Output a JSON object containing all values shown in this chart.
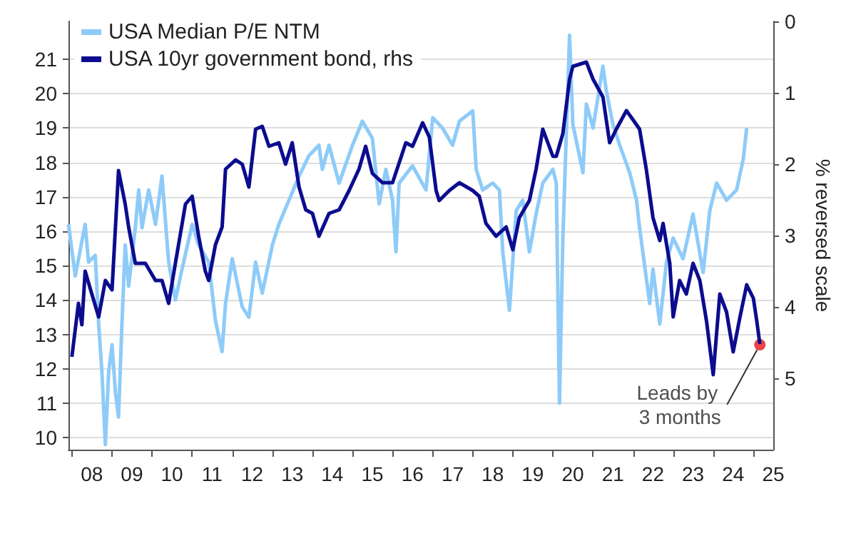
{
  "chart_data": {
    "type": "line",
    "legend": "top left",
    "grid": "y",
    "marker": "none",
    "line_style": "solid",
    "y2label": "% reversed scale",
    "xlim": [
      "2007-12",
      "2025-07"
    ],
    "xticks": [
      {
        "value": "2008",
        "label": null
      },
      {
        "value": "2008-07",
        "label": "08"
      },
      {
        "value": "2009",
        "label": null
      },
      {
        "value": "2009-07",
        "label": "09"
      },
      {
        "value": "2010",
        "label": null
      },
      {
        "value": "2010-07",
        "label": "10"
      },
      {
        "value": "2011",
        "label": null
      },
      {
        "value": "2011-07",
        "label": "11"
      },
      {
        "value": "2012",
        "label": null
      },
      {
        "value": "2012-07",
        "label": "12"
      },
      {
        "value": "2013",
        "label": null
      },
      {
        "value": "2013-07",
        "label": "13"
      },
      {
        "value": "2014",
        "label": null
      },
      {
        "value": "2014-07",
        "label": "14"
      },
      {
        "value": "2015",
        "label": null
      },
      {
        "value": "2015-07",
        "label": "15"
      },
      {
        "value": "2016",
        "label": null
      },
      {
        "value": "2016-07",
        "label": "16"
      },
      {
        "value": "2017",
        "label": null
      },
      {
        "value": "2017-07",
        "label": "17"
      },
      {
        "value": "2018",
        "label": null
      },
      {
        "value": "2018-07",
        "label": "18"
      },
      {
        "value": "2019",
        "label": null
      },
      {
        "value": "2019-07",
        "label": "19"
      },
      {
        "value": "2020",
        "label": null
      },
      {
        "value": "2020-07",
        "label": "20"
      },
      {
        "value": "2021",
        "label": null
      },
      {
        "value": "2021-07",
        "label": "21"
      },
      {
        "value": "2022",
        "label": null
      },
      {
        "value": "2022-07",
        "label": "22"
      },
      {
        "value": "2023",
        "label": null
      },
      {
        "value": "2023-07",
        "label": "23"
      },
      {
        "value": "2024",
        "label": null
      },
      {
        "value": "2024-07",
        "label": "24"
      },
      {
        "value": "2025",
        "label": null
      },
      {
        "value": "2025-07",
        "label": "25"
      }
    ],
    "ylim": [
      9.65,
      22.1
    ],
    "yticks": [
      10,
      11,
      12,
      13,
      14,
      15,
      16,
      17,
      18,
      19,
      20,
      21
    ],
    "y2lim": [
      6,
      0
    ],
    "y2ticks": [
      0,
      1,
      2,
      3,
      4,
      5
    ],
    "annotations": [
      {
        "text": "Leads by 3 months",
        "x": "2025-03",
        "y": 12.7
      }
    ],
    "series": [
      {
        "name": "USA Median P/E NTM",
        "color": "#8ecbf8",
        "x": [
          "2007-12",
          "2008-02",
          "2008-05",
          "2008-06",
          "2008-08",
          "2008-09",
          "2008-10",
          "2008-11",
          "2008-12",
          "2009-01",
          "2009-02",
          "2009-03",
          "2009-04",
          "2009-05",
          "2009-06",
          "2009-08",
          "2009-09",
          "2009-10",
          "2009-12",
          "2010-02",
          "2010-04",
          "2010-06",
          "2010-08",
          "2010-10",
          "2011-01",
          "2011-03",
          "2011-06",
          "2011-08",
          "2011-10",
          "2011-11",
          "2012-01",
          "2012-04",
          "2012-06",
          "2012-08",
          "2012-10",
          "2013-01",
          "2013-03",
          "2013-06",
          "2013-09",
          "2013-12",
          "2014-03",
          "2014-04",
          "2014-06",
          "2014-09",
          "2015-01",
          "2015-04",
          "2015-07",
          "2015-09",
          "2015-11",
          "2016-01",
          "2016-02",
          "2016-03",
          "2016-07",
          "2016-11",
          "2017-01",
          "2017-04",
          "2017-07",
          "2017-09",
          "2018-01",
          "2018-02",
          "2018-04",
          "2018-07",
          "2018-09",
          "2018-10",
          "2018-12",
          "2019-02",
          "2019-04",
          "2019-06",
          "2019-08",
          "2019-10",
          "2020-01",
          "2020-02",
          "2020-03",
          "2020-04",
          "2020-06",
          "2020-07",
          "2020-10",
          "2020-11",
          "2021-01",
          "2021-04",
          "2021-05",
          "2021-07",
          "2021-09",
          "2021-12",
          "2022-02",
          "2022-03",
          "2022-06",
          "2022-07",
          "2022-09",
          "2022-11",
          "2023-01",
          "2023-04",
          "2023-07",
          "2023-10",
          "2023-12",
          "2024-02",
          "2024-05",
          "2024-08",
          "2024-10",
          "2024-11"
        ],
        "values": [
          16.2,
          14.7,
          16.2,
          15.1,
          15.3,
          13.3,
          11.9,
          9.8,
          11.9,
          12.7,
          11.3,
          10.6,
          13.3,
          15.6,
          14.4,
          16.1,
          17.2,
          16.1,
          17.2,
          16.2,
          17.6,
          15.1,
          14.0,
          14.9,
          16.2,
          15.6,
          15.1,
          13.4,
          12.5,
          13.9,
          15.2,
          13.8,
          13.5,
          15.1,
          14.2,
          15.6,
          16.2,
          16.9,
          17.6,
          18.2,
          18.5,
          17.8,
          18.5,
          17.4,
          18.5,
          19.2,
          18.7,
          16.8,
          17.8,
          16.9,
          15.4,
          17.4,
          17.9,
          17.2,
          19.3,
          19.0,
          18.5,
          19.2,
          19.5,
          17.8,
          17.2,
          17.4,
          17.2,
          15.4,
          13.7,
          16.6,
          16.9,
          15.4,
          16.5,
          17.4,
          17.8,
          17.4,
          11.0,
          15.8,
          21.7,
          19.1,
          17.7,
          19.7,
          19.0,
          20.8,
          20.1,
          19.1,
          18.5,
          17.7,
          16.9,
          16.1,
          13.9,
          14.9,
          13.3,
          15.1,
          15.8,
          15.2,
          16.5,
          14.8,
          16.6,
          17.4,
          16.9,
          17.2,
          18.1,
          19.0
        ]
      },
      {
        "name": "USA 10yr government bond, rhs",
        "color": "#0c0c8f",
        "axis": "y2",
        "x": [
          "2008-01",
          "2008-03",
          "2008-04",
          "2008-05",
          "2008-07",
          "2008-09",
          "2008-11",
          "2009-01",
          "2009-03",
          "2009-05",
          "2009-06",
          "2009-08",
          "2009-11",
          "2010-02",
          "2010-04",
          "2010-06",
          "2010-08",
          "2010-11",
          "2011-01",
          "2011-03",
          "2011-05",
          "2011-06",
          "2011-08",
          "2011-10",
          "2011-11",
          "2012-02",
          "2012-04",
          "2012-06",
          "2012-08",
          "2012-10",
          "2012-12",
          "2013-03",
          "2013-05",
          "2013-07",
          "2013-09",
          "2013-11",
          "2014-01",
          "2014-03",
          "2014-06",
          "2014-09",
          "2014-12",
          "2015-03",
          "2015-05",
          "2015-07",
          "2015-10",
          "2016-01",
          "2016-05",
          "2016-07",
          "2016-10",
          "2016-12",
          "2017-02",
          "2017-03",
          "2017-06",
          "2017-09",
          "2018-01",
          "2018-03",
          "2018-05",
          "2018-08",
          "2018-11",
          "2019-01",
          "2019-03",
          "2019-06",
          "2019-08",
          "2019-10",
          "2020-01",
          "2020-02",
          "2020-04",
          "2020-06",
          "2020-07",
          "2020-11",
          "2021-01",
          "2021-04",
          "2021-06",
          "2021-08",
          "2021-11",
          "2022-01",
          "2022-03",
          "2022-05",
          "2022-07",
          "2022-09",
          "2022-10",
          "2022-12",
          "2023-01",
          "2023-03",
          "2023-05",
          "2023-07",
          "2023-09",
          "2023-11",
          "2024-01",
          "2024-03",
          "2024-05",
          "2024-07",
          "2024-09",
          "2024-11",
          "2025-01",
          "2025-02",
          "2025-03"
        ],
        "values": [
          4.7,
          3.95,
          4.25,
          3.5,
          3.82,
          4.14,
          3.63,
          3.76,
          2.09,
          2.56,
          2.88,
          3.39,
          3.39,
          3.63,
          3.63,
          3.95,
          3.39,
          2.56,
          2.45,
          3.01,
          3.5,
          3.63,
          3.13,
          2.88,
          2.07,
          1.94,
          2.0,
          2.32,
          1.51,
          1.47,
          1.75,
          1.7,
          2.0,
          1.7,
          2.32,
          2.64,
          2.69,
          3.01,
          2.69,
          2.64,
          2.37,
          2.07,
          1.75,
          2.13,
          2.26,
          2.26,
          1.7,
          1.75,
          1.42,
          1.62,
          2.37,
          2.51,
          2.37,
          2.26,
          2.37,
          2.45,
          2.83,
          3.01,
          2.88,
          3.2,
          2.75,
          2.51,
          2.07,
          1.51,
          1.89,
          1.89,
          1.57,
          0.81,
          0.63,
          0.57,
          0.81,
          1.06,
          1.7,
          1.51,
          1.25,
          1.38,
          1.51,
          2.07,
          2.75,
          3.07,
          2.83,
          3.39,
          4.14,
          3.63,
          3.82,
          3.39,
          3.63,
          4.2,
          4.95,
          3.82,
          4.07,
          4.63,
          4.14,
          3.69,
          3.88,
          4.2,
          4.52
        ]
      }
    ]
  }
}
